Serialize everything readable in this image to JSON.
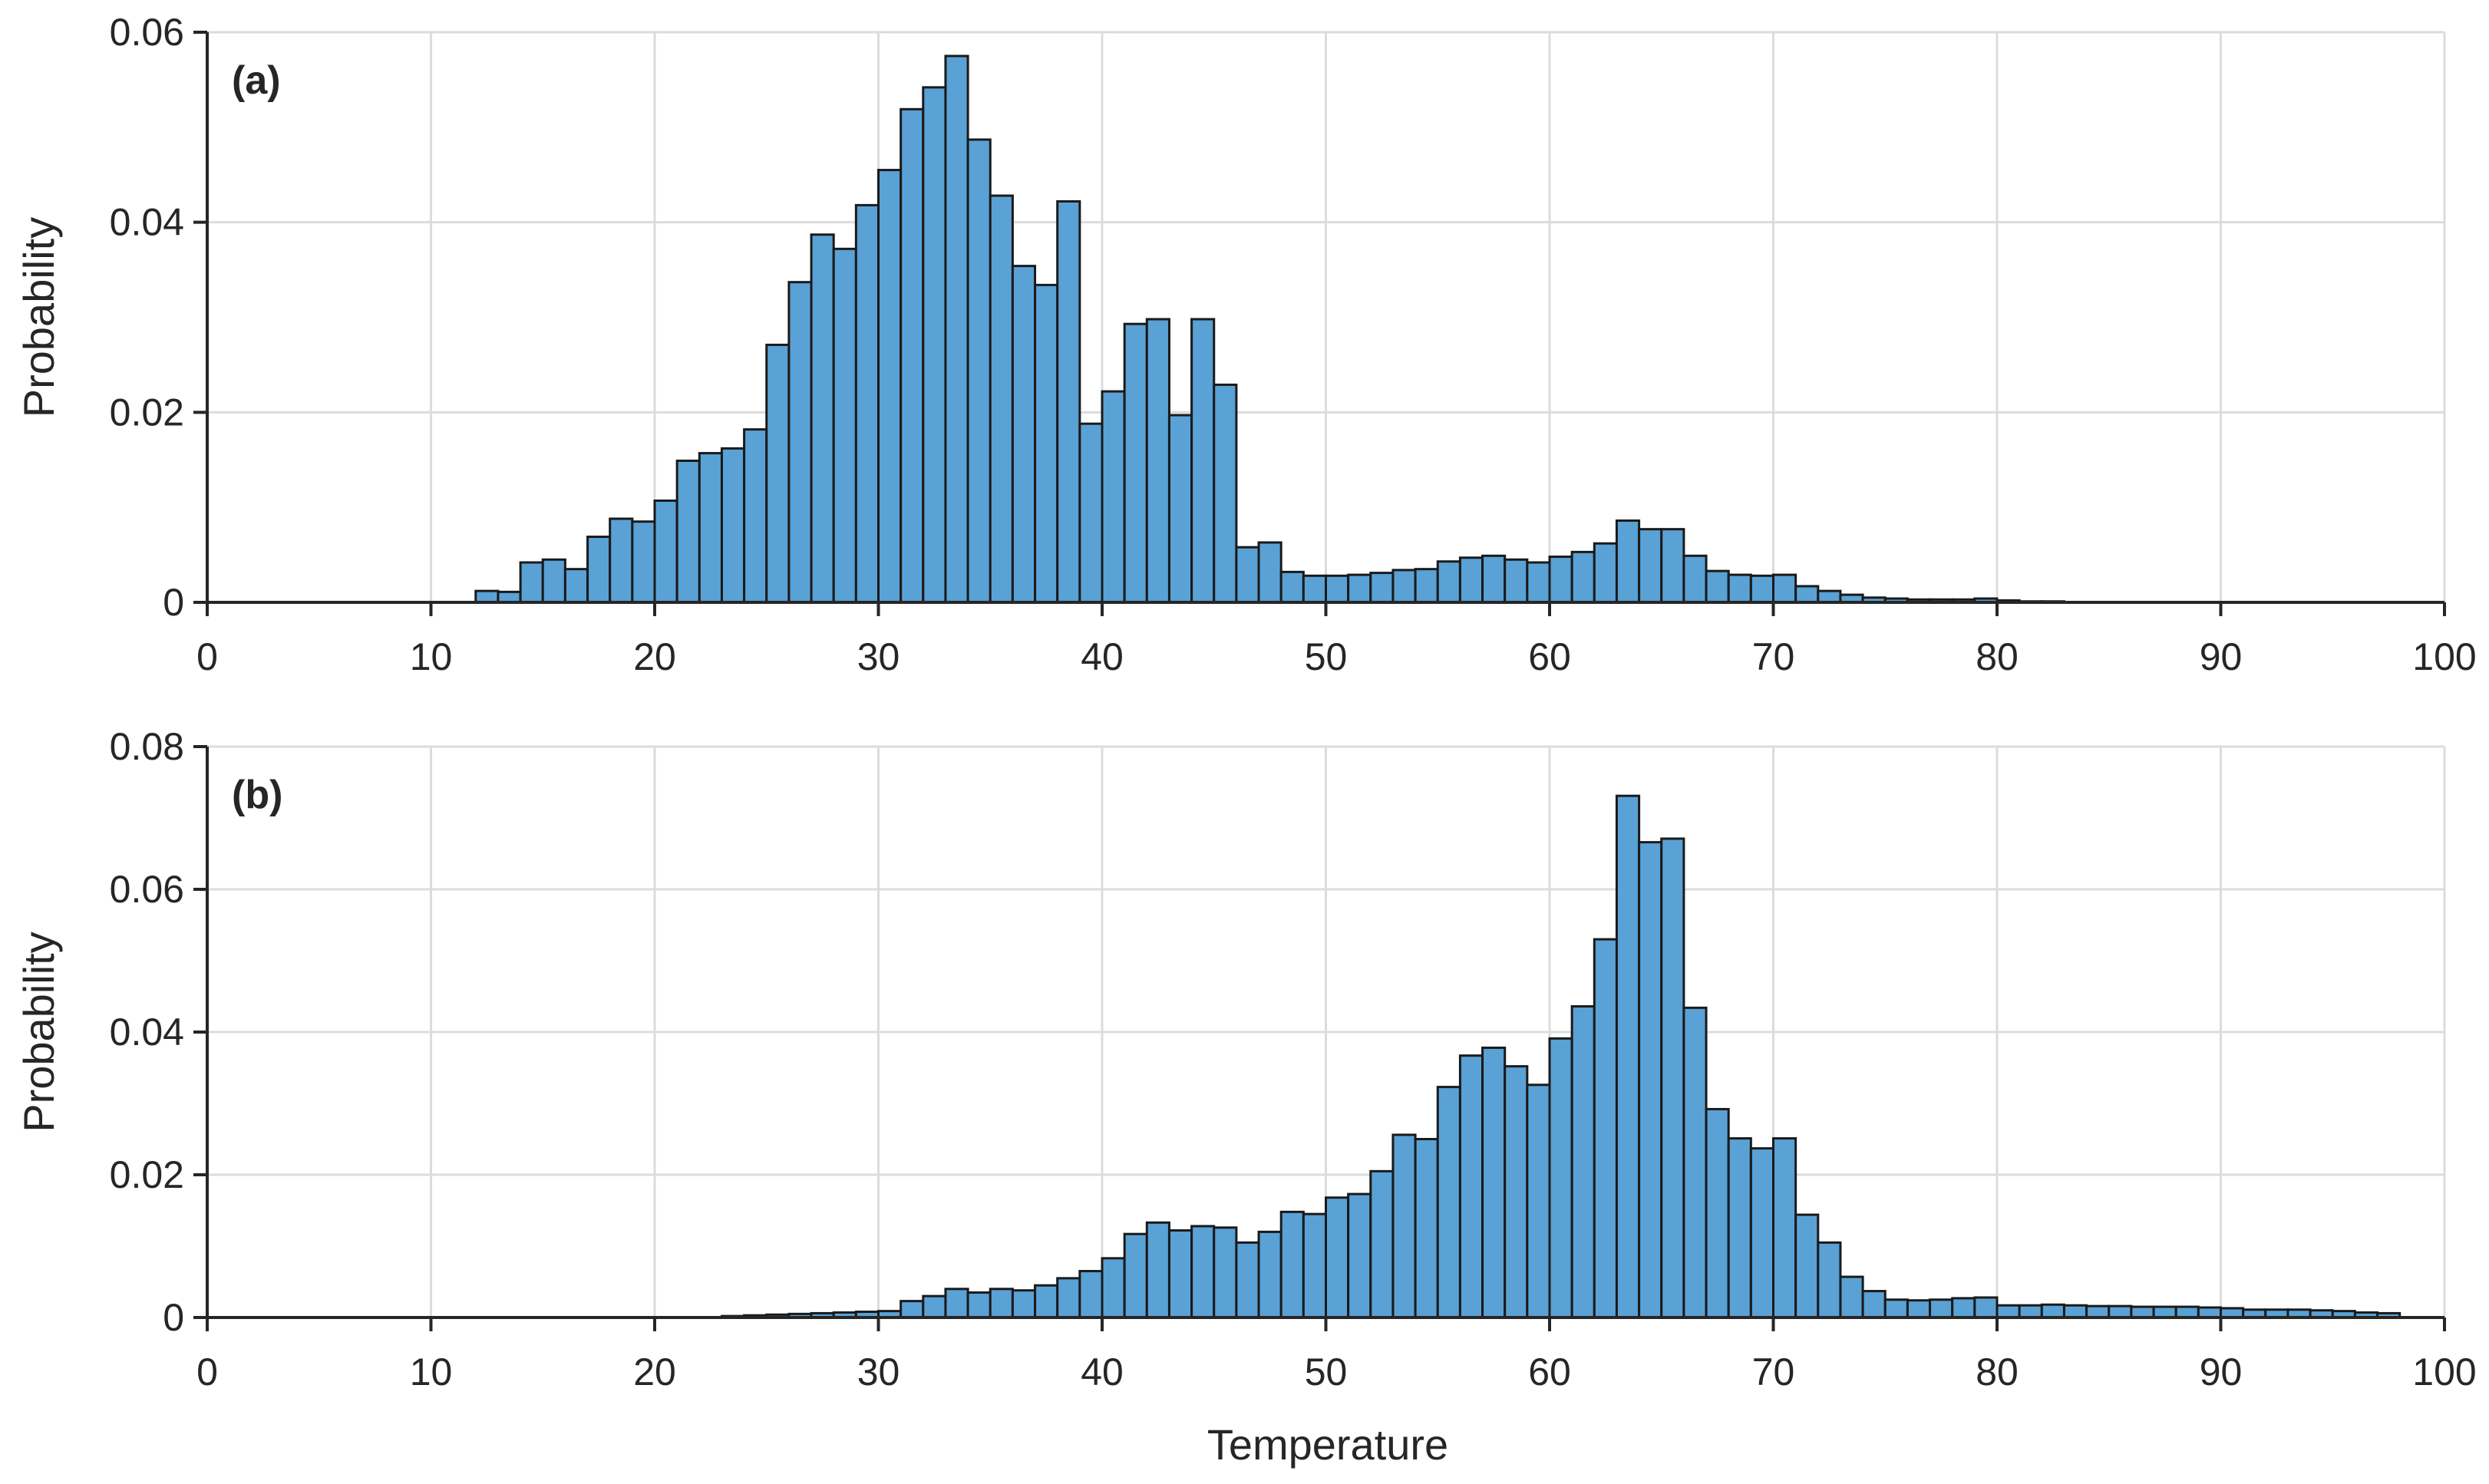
{
  "figure": {
    "xlabel": "Temperature"
  },
  "chart_data": [
    {
      "type": "bar",
      "panel_label": "(a)",
      "xlabel": "",
      "ylabel": "Probability",
      "xlim": [
        0,
        100
      ],
      "ylim": [
        0,
        0.06
      ],
      "xticks": [
        0,
        10,
        20,
        30,
        40,
        50,
        60,
        70,
        80,
        90,
        100
      ],
      "yticks": [
        0,
        0.02,
        0.04,
        0.06
      ],
      "ytick_labels": [
        "0",
        "0.02",
        "0.04",
        "0.06"
      ],
      "grid": true,
      "bin_width": 1,
      "bin_starts": [
        12,
        13,
        14,
        15,
        16,
        17,
        18,
        19,
        20,
        21,
        22,
        23,
        24,
        25,
        26,
        27,
        28,
        29,
        30,
        31,
        32,
        33,
        34,
        35,
        36,
        37,
        38,
        39,
        40,
        41,
        42,
        43,
        44,
        45,
        46,
        47,
        48,
        49,
        50,
        51,
        52,
        53,
        54,
        55,
        56,
        57,
        58,
        59,
        60,
        61,
        62,
        63,
        64,
        65,
        66,
        67,
        68,
        69,
        70,
        71,
        72,
        73,
        74,
        75,
        76,
        77,
        78,
        79,
        80,
        81,
        82
      ],
      "values": [
        0.0012,
        0.0011,
        0.0042,
        0.0045,
        0.0035,
        0.0069,
        0.0088,
        0.0085,
        0.0107,
        0.0149,
        0.0157,
        0.0162,
        0.0182,
        0.0271,
        0.0337,
        0.0387,
        0.0372,
        0.0418,
        0.0455,
        0.0519,
        0.0542,
        0.0575,
        0.0487,
        0.0428,
        0.0354,
        0.0334,
        0.0422,
        0.0188,
        0.0222,
        0.0293,
        0.0298,
        0.0197,
        0.0298,
        0.0229,
        0.0058,
        0.0063,
        0.0032,
        0.0028,
        0.0028,
        0.0029,
        0.0031,
        0.0034,
        0.0035,
        0.0043,
        0.0047,
        0.0049,
        0.0045,
        0.0042,
        0.0048,
        0.0053,
        0.0062,
        0.0086,
        0.0077,
        0.0077,
        0.0049,
        0.0033,
        0.0029,
        0.0028,
        0.0029,
        0.0017,
        0.0012,
        0.0008,
        0.0005,
        0.0004,
        0.0003,
        0.0003,
        0.0003,
        0.0004,
        0.0002,
        0.0001,
        0.0001
      ]
    },
    {
      "type": "bar",
      "panel_label": "(b)",
      "xlabel": "Temperature",
      "ylabel": "Probability",
      "xlim": [
        0,
        100
      ],
      "ylim": [
        0,
        0.08
      ],
      "xticks": [
        0,
        10,
        20,
        30,
        40,
        50,
        60,
        70,
        80,
        90,
        100
      ],
      "yticks": [
        0,
        0.02,
        0.04,
        0.06,
        0.08
      ],
      "ytick_labels": [
        "0",
        "0.02",
        "0.04",
        "0.06",
        "0.08"
      ],
      "grid": true,
      "bin_width": 1,
      "bin_starts": [
        23,
        24,
        25,
        26,
        27,
        28,
        29,
        30,
        31,
        32,
        33,
        34,
        35,
        36,
        37,
        38,
        39,
        40,
        41,
        42,
        43,
        44,
        45,
        46,
        47,
        48,
        49,
        50,
        51,
        52,
        53,
        54,
        55,
        56,
        57,
        58,
        59,
        60,
        61,
        62,
        63,
        64,
        65,
        66,
        67,
        68,
        69,
        70,
        71,
        72,
        73,
        74,
        75,
        76,
        77,
        78,
        79,
        80,
        81,
        82,
        83,
        84,
        85,
        86,
        87,
        88,
        89,
        90,
        91,
        92,
        93,
        94,
        95,
        96,
        97
      ],
      "values": [
        0.0002,
        0.0003,
        0.0004,
        0.0005,
        0.0006,
        0.0007,
        0.0008,
        0.0009,
        0.0023,
        0.003,
        0.004,
        0.0035,
        0.004,
        0.0038,
        0.0045,
        0.0055,
        0.0065,
        0.0083,
        0.0117,
        0.0133,
        0.0122,
        0.0128,
        0.0126,
        0.0105,
        0.012,
        0.0148,
        0.0145,
        0.0168,
        0.0173,
        0.0205,
        0.0256,
        0.025,
        0.0323,
        0.0367,
        0.0378,
        0.0352,
        0.0326,
        0.0391,
        0.0436,
        0.053,
        0.0731,
        0.0666,
        0.0671,
        0.0434,
        0.0292,
        0.0251,
        0.0237,
        0.0251,
        0.0144,
        0.0105,
        0.0057,
        0.0037,
        0.0025,
        0.0024,
        0.0025,
        0.0027,
        0.0028,
        0.0017,
        0.0017,
        0.0018,
        0.0017,
        0.0016,
        0.0016,
        0.0015,
        0.0015,
        0.0015,
        0.0014,
        0.0013,
        0.0011,
        0.0011,
        0.0011,
        0.001,
        0.0009,
        0.0007,
        0.0006
      ]
    }
  ]
}
